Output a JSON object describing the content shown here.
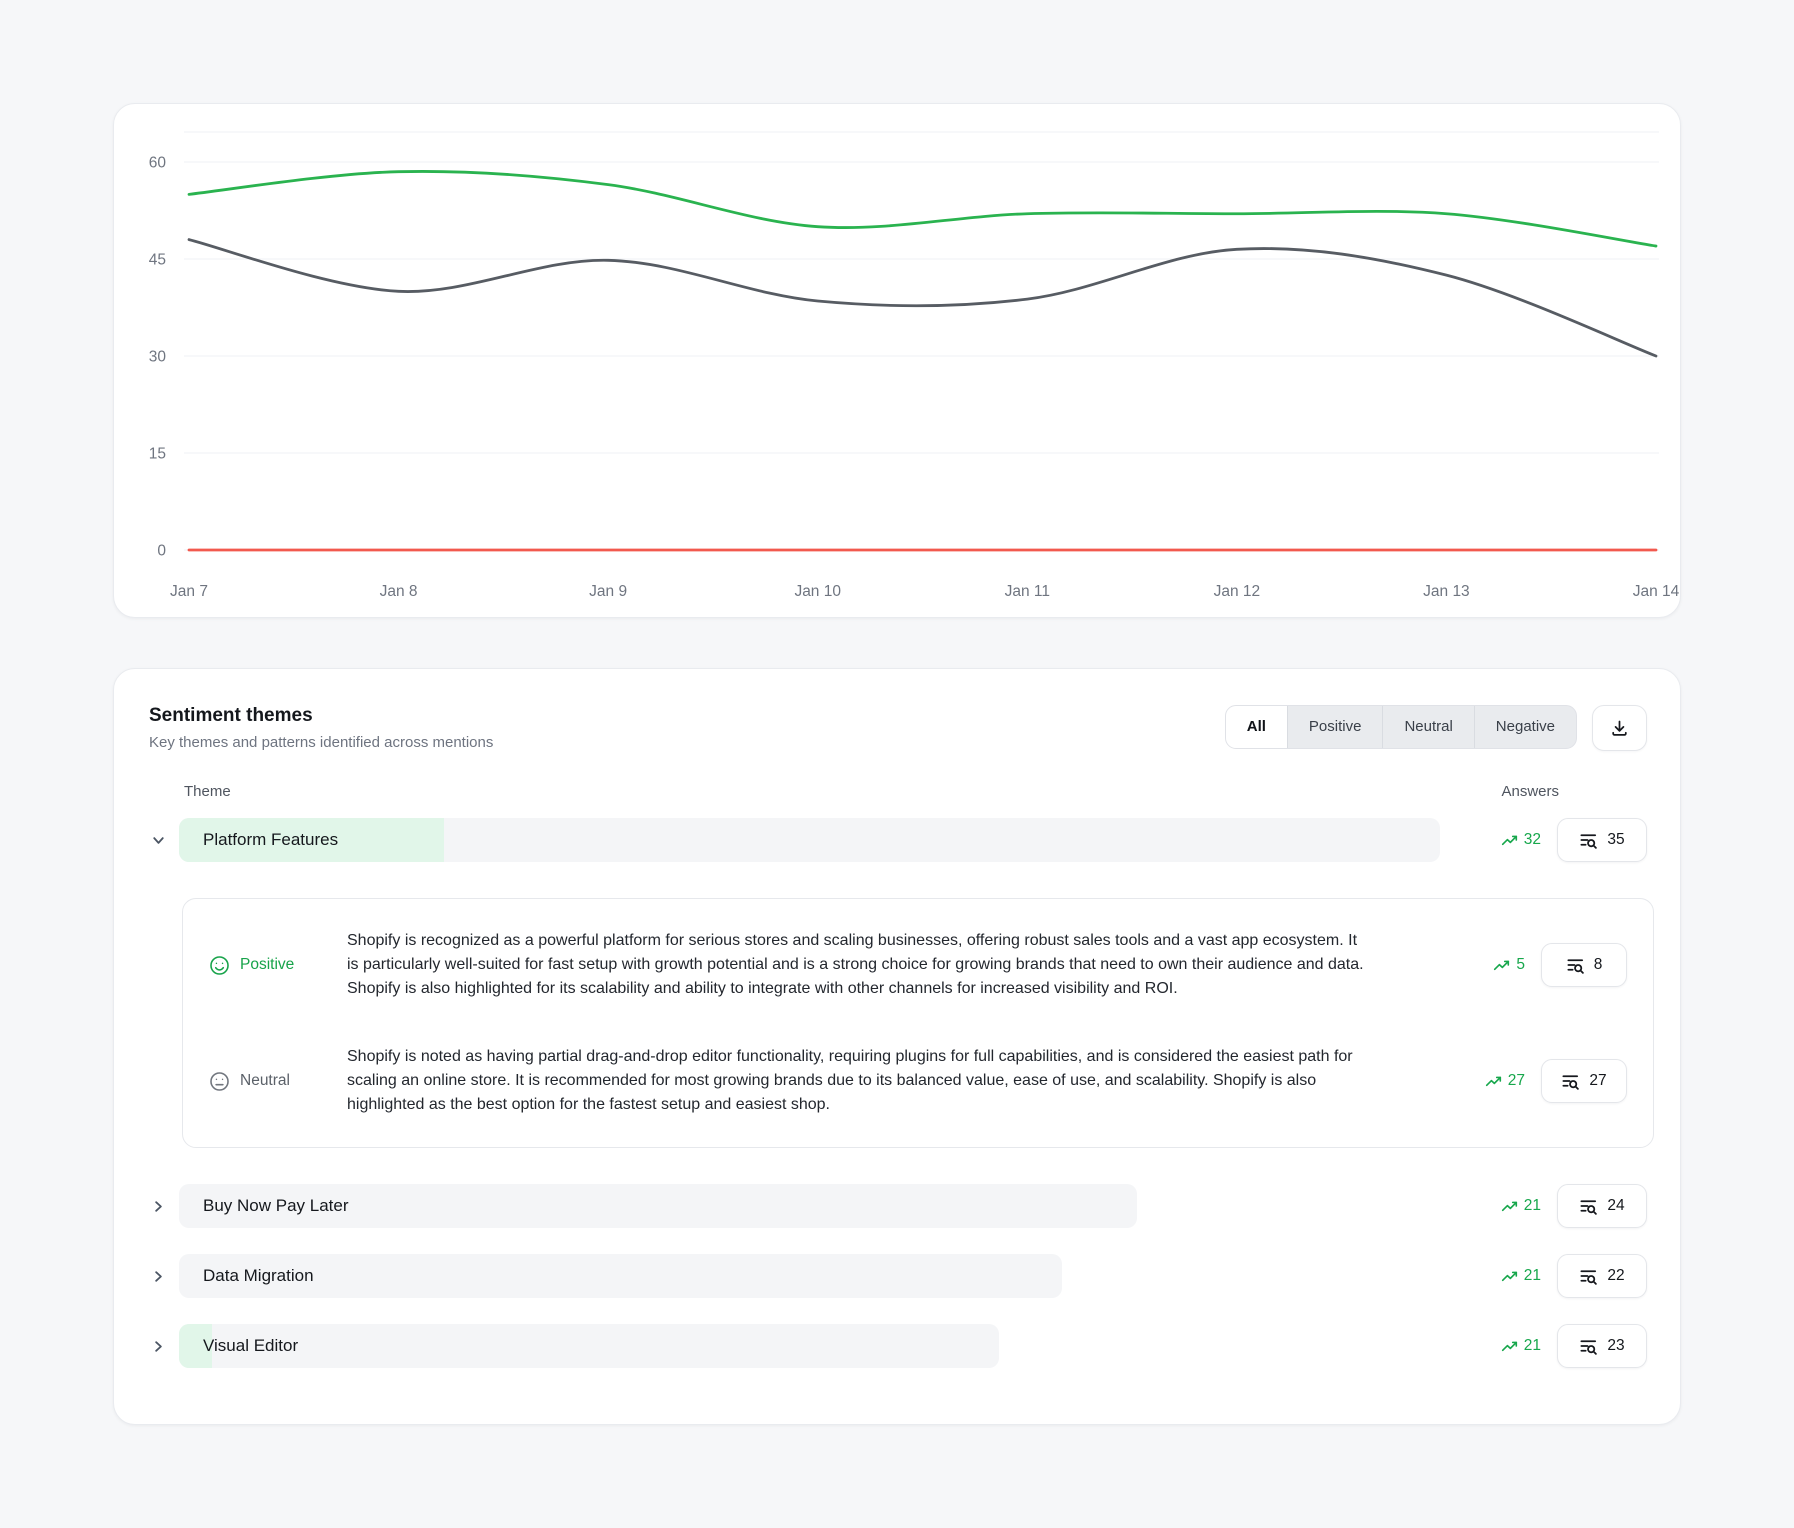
{
  "chart_data": {
    "type": "line",
    "title": "",
    "xlabel": "",
    "ylabel": "",
    "x": [
      "Jan 7",
      "Jan 8",
      "Jan 9",
      "Jan 10",
      "Jan 11",
      "Jan 12",
      "Jan 13",
      "Jan 14"
    ],
    "series": [
      {
        "name": "positive",
        "color": "#2ab34f",
        "values": [
          55,
          58.5,
          56.5,
          50,
          52,
          52,
          52,
          47
        ]
      },
      {
        "name": "neutral",
        "color": "#575c63",
        "values": [
          48,
          40,
          44.8,
          38.5,
          38.8,
          46.5,
          42.5,
          30
        ]
      },
      {
        "name": "negative",
        "color": "#f2594e",
        "values": [
          0,
          0,
          0,
          0,
          0,
          0,
          0,
          0
        ]
      }
    ],
    "ylim": [
      0,
      60
    ],
    "yticks": [
      0,
      15,
      30,
      45,
      60
    ],
    "grid": true,
    "legend_position": "none"
  },
  "sentiment": {
    "title": "Sentiment themes",
    "subtitle": "Key themes and patterns identified across mentions",
    "filters": {
      "options": [
        "All",
        "Positive",
        "Neutral",
        "Negative"
      ],
      "active": "All"
    },
    "columns": {
      "theme": "Theme",
      "answers": "Answers"
    },
    "themes": [
      {
        "name": "Platform Features",
        "trend": 32,
        "answers": 35,
        "expanded": true,
        "bar_pct": 100,
        "positive_pct": 21,
        "details": [
          {
            "sentiment": "Positive",
            "trend": 5,
            "answers": 8,
            "text": "Shopify is recognized as a powerful platform for serious stores and scaling businesses, offering robust sales tools and a vast app ecosystem. It is particularly well-suited for fast setup with growth potential and is a strong choice for growing brands that need to own their audience and data. Shopify is also highlighted for its scalability and ability to integrate with other channels for increased visibility and ROI."
          },
          {
            "sentiment": "Neutral",
            "trend": 27,
            "answers": 27,
            "text": "Shopify is noted as having partial drag-and-drop editor functionality, requiring plugins for full capabilities, and is considered the easiest path for scaling an online store. It is recommended for most growing brands due to its balanced value, ease of use, and scalability. Shopify is also highlighted as the best option for the fastest setup and easiest shop."
          }
        ]
      },
      {
        "name": "Buy Now Pay Later",
        "trend": 21,
        "answers": 24,
        "expanded": false,
        "bar_pct": 76,
        "positive_pct": 0,
        "details": []
      },
      {
        "name": "Data Migration",
        "trend": 21,
        "answers": 22,
        "expanded": false,
        "bar_pct": 70,
        "positive_pct": 0,
        "details": []
      },
      {
        "name": "Visual Editor",
        "trend": 21,
        "answers": 23,
        "expanded": false,
        "bar_pct": 65,
        "positive_pct": 4,
        "details": []
      }
    ],
    "icons": {
      "download": "download-tray-icon",
      "answers": "list-search-icon",
      "trend": "trending-up-icon",
      "expanded": "chevron-down-icon",
      "collapsed": "chevron-right-icon",
      "positive": "smiley-face-icon",
      "neutral": "neutral-face-icon"
    },
    "colors": {
      "positive_text": "#17a34a",
      "trend_green": "#17a74c",
      "bar_bg": "#f4f5f7",
      "bar_positive_bg": "#e1f6e9"
    }
  }
}
